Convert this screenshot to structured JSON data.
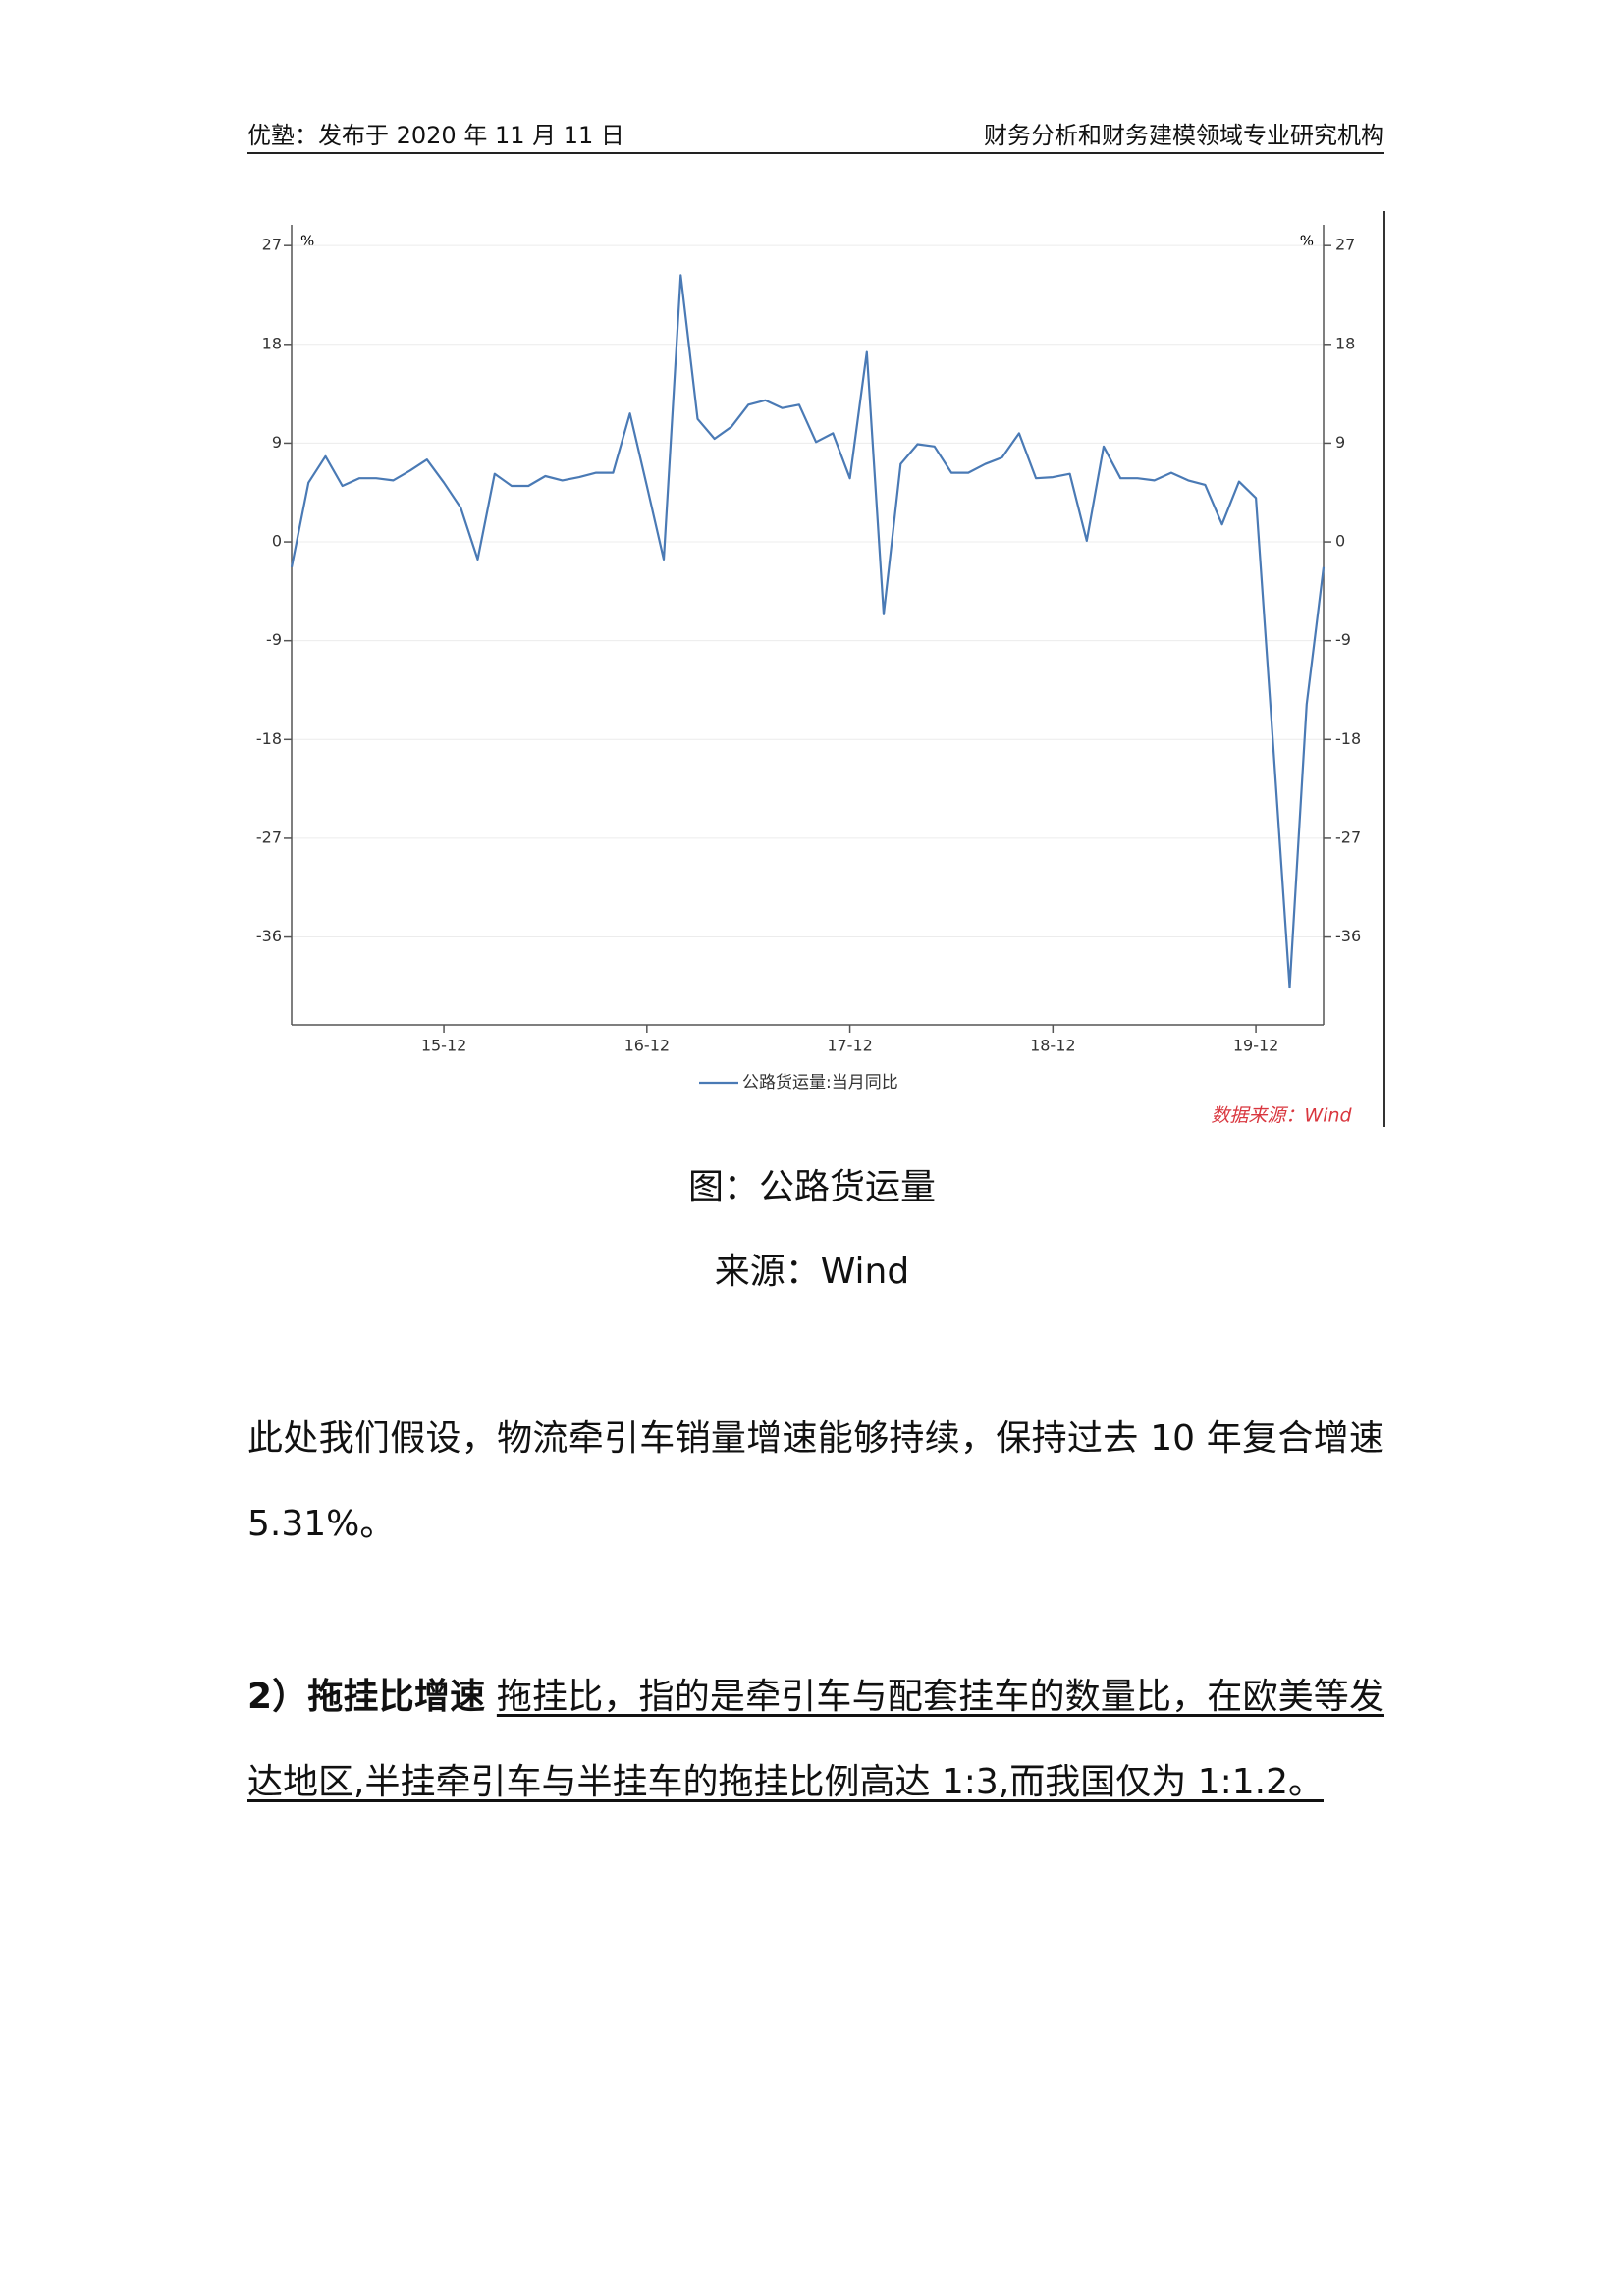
{
  "header": {
    "left": "优塾：发布于 2020 年 11 月 11 日",
    "right": "财务分析和财务建模领域专业研究机构"
  },
  "chart_data": {
    "type": "line",
    "categories": [
      null,
      null,
      null,
      null,
      null,
      null,
      null,
      null,
      null,
      "15-12",
      null,
      null,
      null,
      null,
      null,
      null,
      null,
      null,
      null,
      null,
      null,
      "16-12",
      null,
      null,
      null,
      null,
      null,
      null,
      null,
      null,
      null,
      null,
      null,
      "17-12",
      null,
      null,
      null,
      null,
      null,
      null,
      null,
      null,
      null,
      null,
      null,
      "18-12",
      null,
      null,
      null,
      null,
      null,
      null,
      null,
      null,
      null,
      null,
      null,
      "19-12",
      null,
      null,
      null,
      null
    ],
    "series": [
      {
        "name": "公路货运量:当月同比",
        "color": "#4a7ab5",
        "values": [
          -2.3,
          5.4,
          7.8,
          5.1,
          5.8,
          5.8,
          5.6,
          6.5,
          7.5,
          5.4,
          3.1,
          -1.6,
          6.2,
          5.1,
          5.1,
          6.0,
          5.6,
          5.9,
          6.3,
          6.3,
          11.7,
          5.1,
          -1.6,
          24.3,
          11.2,
          9.4,
          10.5,
          12.5,
          12.9,
          12.2,
          12.5,
          9.1,
          9.9,
          5.8,
          17.3,
          -6.6,
          7.1,
          8.9,
          8.7,
          6.3,
          6.3,
          7.1,
          7.7,
          9.9,
          5.8,
          5.9,
          6.2,
          0.1,
          8.7,
          5.8,
          5.8,
          5.6,
          6.3,
          5.6,
          5.2,
          1.6,
          5.5,
          4.0,
          -18.0,
          -40.6,
          -14.8,
          -2.3
        ]
      }
    ],
    "ylabel": "%",
    "y2label": "%",
    "ylim": [
      -44,
      28
    ],
    "yticks": [
      27,
      18,
      9,
      0,
      -9,
      -18,
      -27,
      -36
    ],
    "y2lim": [
      -44,
      28
    ],
    "y2ticks": [
      27,
      18,
      9,
      0,
      -9,
      -18,
      -27,
      -36
    ],
    "grid": true,
    "legend": "bottom",
    "annotation": "数据来源：Wind"
  },
  "caption": "图：公路货运量",
  "source": "来源：Wind",
  "paragraphs": [
    {
      "text": "此处我们假设，物流牵引车销量增速能够持续，保持过去 10 年复合增速 5.31%。"
    },
    {
      "lead": "2）拖挂比增速",
      "text": "拖挂比，指的是牵引车与配套挂车的数量比，在欧美等发达地区,半挂牵引车与半挂车的拖挂比例高达 1:3,而我国仅为 1:1.2。"
    }
  ]
}
